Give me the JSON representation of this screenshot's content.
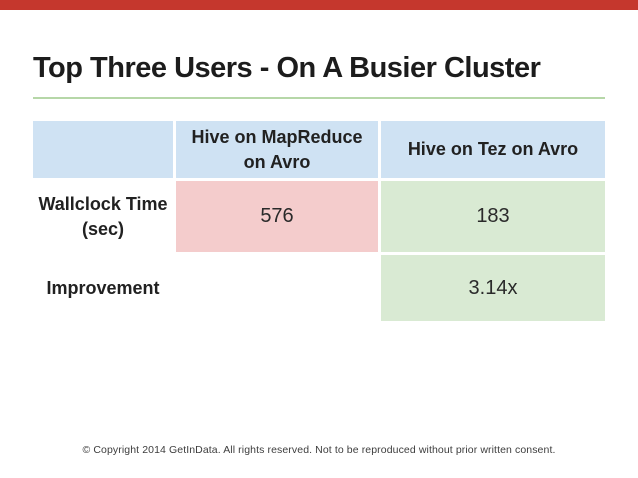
{
  "slide": {
    "title": "Top Three Users - On A Busier Cluster"
  },
  "table": {
    "header": [
      "",
      "Hive on MapReduce on Avro",
      "Hive on Tez on Avro"
    ],
    "rows": [
      {
        "label": "Wallclock Time (sec)",
        "values": [
          "576",
          "183"
        ]
      },
      {
        "label": "Improvement",
        "values": [
          "",
          "3.14x"
        ]
      }
    ]
  },
  "chart_data": {
    "type": "table",
    "title": "Top Three Users - On A Busier Cluster",
    "columns": [
      "Hive on MapReduce on Avro",
      "Hive on Tez on Avro"
    ],
    "metrics": [
      {
        "name": "Wallclock Time (sec)",
        "hive_on_mapreduce_on_avro": 576,
        "hive_on_tez_on_avro": 183
      },
      {
        "name": "Improvement",
        "hive_on_mapreduce_on_avro": null,
        "hive_on_tez_on_avro": "3.14x"
      }
    ]
  },
  "footer": {
    "copyright": "© Copyright 2014 GetInData. All rights reserved. Not to be reproduced without prior written consent."
  },
  "colors": {
    "top_bar_red": "#c5372d",
    "divider_green": "#b6d7a8",
    "header_blue": "#cfe2f3",
    "slow_cell_pink": "#f4cccc",
    "fast_cell_green": "#d9ead3",
    "title_text": "#1c1c1c"
  }
}
